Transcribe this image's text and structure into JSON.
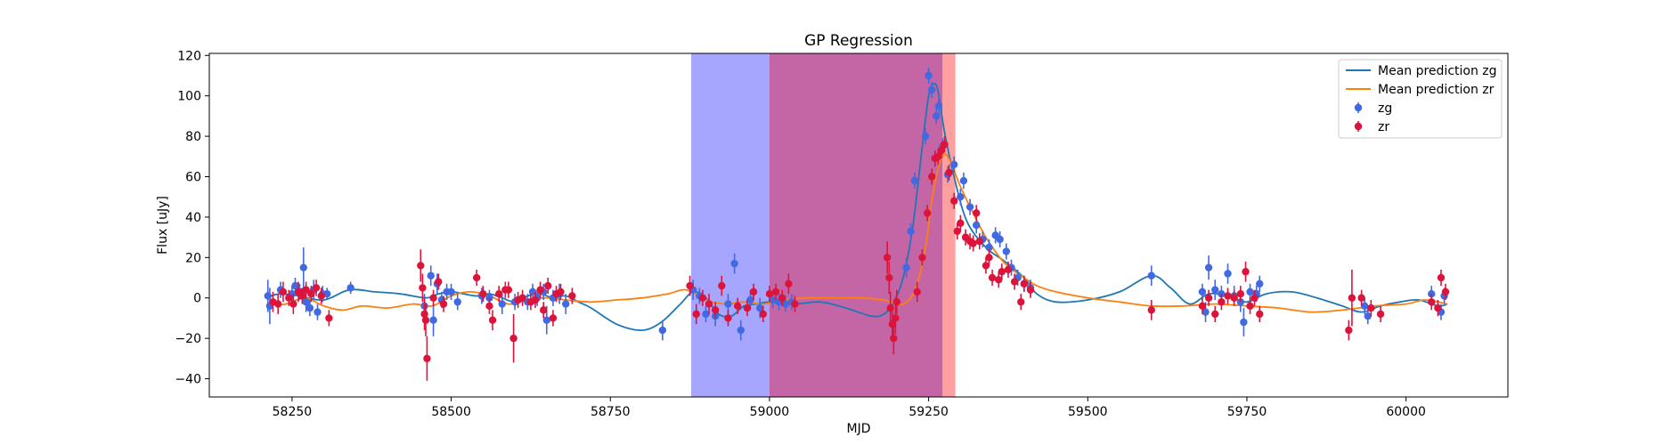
{
  "chart_data": {
    "type": "scatter",
    "title": "GP Regression",
    "xlabel": "MJD",
    "ylabel": "Flux [uJy]",
    "xlim": [
      58120,
      60160
    ],
    "ylim": [
      -49,
      121
    ],
    "xticks": [
      58250,
      58500,
      58750,
      59000,
      59250,
      59500,
      59750,
      60000
    ],
    "yticks": [
      -40,
      -20,
      0,
      20,
      40,
      60,
      80,
      100,
      120
    ],
    "grid": false,
    "legend_position": "top-right",
    "shaded_regions": [
      {
        "x0": 58877,
        "x1": 59000,
        "color": "#a6a6ff"
      },
      {
        "x0": 59000,
        "x1": 59272,
        "color": "#c466a6"
      },
      {
        "x0": 59272,
        "x1": 59292,
        "color": "#ffa0a0"
      }
    ],
    "lines": [
      {
        "name": "Mean prediction zg",
        "color": "#1f77b4",
        "x": [
          58210,
          58230,
          58260,
          58300,
          58340,
          58380,
          58420,
          58460,
          58480,
          58500,
          58520,
          58540,
          58560,
          58580,
          58600,
          58620,
          58640,
          58660,
          58680,
          58700,
          58720,
          58760,
          58800,
          58830,
          58860,
          58880,
          58900,
          58920,
          58940,
          58960,
          58980,
          59000,
          59040,
          59080,
          59120,
          59160,
          59180,
          59195,
          59210,
          59225,
          59240,
          59250,
          59258,
          59265,
          59275,
          59290,
          59310,
          59340,
          59370,
          59400,
          59420,
          59450,
          59500,
          59550,
          59600,
          59630,
          59660,
          59690,
          59720,
          59750,
          59780,
          59820,
          59860,
          59900,
          59930,
          59960,
          59990,
          60020,
          60050,
          60065
        ],
        "y": [
          0,
          2,
          1,
          -1,
          4,
          3,
          2,
          0,
          2,
          3,
          2,
          1,
          2,
          0,
          -2,
          1,
          2,
          0,
          1,
          -2,
          -5,
          -13,
          -16,
          -12,
          -3,
          3,
          0,
          -8,
          -9,
          -4,
          -3,
          -2,
          -3,
          -2,
          -5,
          -9,
          -8,
          -2,
          10,
          35,
          75,
          100,
          106,
          102,
          82,
          60,
          38,
          25,
          18,
          10,
          2,
          -2,
          -1,
          3,
          11,
          5,
          -3,
          2,
          1,
          -2,
          2,
          3,
          0,
          -4,
          -7,
          -4,
          -2,
          -1,
          -4,
          -3
        ]
      },
      {
        "name": "Mean prediction zr",
        "color": "#ff7f0e",
        "x": [
          58210,
          58240,
          58270,
          58300,
          58330,
          58360,
          58400,
          58440,
          58470,
          58500,
          58530,
          58560,
          58590,
          58620,
          58650,
          58680,
          58720,
          58760,
          58800,
          58840,
          58870,
          58900,
          58930,
          58960,
          58990,
          59020,
          59060,
          59100,
          59140,
          59180,
          59210,
          59230,
          59245,
          59255,
          59265,
          59275,
          59285,
          59300,
          59320,
          59340,
          59370,
          59400,
          59420,
          59450,
          59500,
          59550,
          59600,
          59650,
          59700,
          59750,
          59800,
          59850,
          59900,
          59950,
          60000,
          60030,
          60065
        ],
        "y": [
          -3,
          -3,
          0,
          -4,
          -6,
          -4,
          -5,
          -3,
          -4,
          1,
          3,
          1,
          -3,
          -1,
          0,
          -1,
          -2,
          -1,
          0,
          2,
          4,
          -1,
          -3,
          -2,
          -3,
          -1,
          0,
          0,
          0,
          -1,
          -3,
          5,
          25,
          48,
          64,
          71,
          67,
          55,
          42,
          30,
          17,
          10,
          6,
          3,
          0,
          -2,
          -4,
          -4,
          -3,
          -4,
          -5,
          -7,
          -6,
          -4,
          -3,
          -1,
          -3
        ]
      }
    ],
    "series": [
      {
        "name": "zg",
        "color": "#4169e1",
        "points": [
          [
            58212,
            1,
            8
          ],
          [
            58215,
            -4,
            9
          ],
          [
            58232,
            4,
            4
          ],
          [
            58250,
            2,
            4
          ],
          [
            58255,
            6,
            4
          ],
          [
            58262,
            3,
            4
          ],
          [
            58268,
            15,
            10
          ],
          [
            58272,
            -2,
            5
          ],
          [
            58278,
            -5,
            4
          ],
          [
            58284,
            4,
            5
          ],
          [
            58290,
            -7,
            4
          ],
          [
            58298,
            2,
            4
          ],
          [
            58305,
            2,
            3
          ],
          [
            58342,
            5,
            3
          ],
          [
            58458,
            -4,
            6
          ],
          [
            58468,
            11,
            5
          ],
          [
            58472,
            -11,
            8
          ],
          [
            58478,
            7,
            5
          ],
          [
            58485,
            -1,
            4
          ],
          [
            58493,
            3,
            4
          ],
          [
            58500,
            3,
            4
          ],
          [
            58510,
            -2,
            4
          ],
          [
            58548,
            1,
            4
          ],
          [
            58560,
            0,
            4
          ],
          [
            58580,
            -3,
            5
          ],
          [
            58600,
            -2,
            4
          ],
          [
            58620,
            -2,
            4
          ],
          [
            58628,
            3,
            4
          ],
          [
            58635,
            0,
            4
          ],
          [
            58645,
            3,
            4
          ],
          [
            58650,
            -11,
            7
          ],
          [
            58660,
            0,
            4
          ],
          [
            58670,
            2,
            5
          ],
          [
            58680,
            -3,
            5
          ],
          [
            58832,
            -16,
            5
          ],
          [
            58880,
            4,
            5
          ],
          [
            58890,
            1,
            4
          ],
          [
            58900,
            -8,
            4
          ],
          [
            58915,
            -9,
            5
          ],
          [
            58935,
            -3,
            5
          ],
          [
            58945,
            17,
            5
          ],
          [
            58955,
            -16,
            5
          ],
          [
            58970,
            -1,
            5
          ],
          [
            58985,
            -5,
            5
          ],
          [
            59005,
            -1,
            4
          ],
          [
            59015,
            -2,
            4
          ],
          [
            59025,
            -3,
            4
          ],
          [
            59035,
            -2,
            4
          ],
          [
            59215,
            15,
            5
          ],
          [
            59222,
            33,
            4
          ],
          [
            59228,
            58,
            4
          ],
          [
            59245,
            80,
            4
          ],
          [
            59250,
            110,
            4
          ],
          [
            59255,
            103,
            4
          ],
          [
            59262,
            90,
            4
          ],
          [
            59266,
            95,
            4
          ],
          [
            59272,
            75,
            4
          ],
          [
            59280,
            61,
            4
          ],
          [
            59290,
            66,
            4
          ],
          [
            59300,
            50,
            4
          ],
          [
            59305,
            58,
            4
          ],
          [
            59315,
            45,
            4
          ],
          [
            59325,
            36,
            4
          ],
          [
            59335,
            29,
            4
          ],
          [
            59345,
            25,
            4
          ],
          [
            59355,
            31,
            4
          ],
          [
            59362,
            29,
            4
          ],
          [
            59372,
            23,
            4
          ],
          [
            59380,
            15,
            4
          ],
          [
            59390,
            10,
            4
          ],
          [
            59400,
            7,
            4
          ],
          [
            59410,
            5,
            4
          ],
          [
            59600,
            11,
            5
          ],
          [
            59680,
            3,
            4
          ],
          [
            59685,
            -7,
            5
          ],
          [
            59690,
            15,
            6
          ],
          [
            59700,
            4,
            5
          ],
          [
            59710,
            2,
            4
          ],
          [
            59720,
            12,
            5
          ],
          [
            59730,
            1,
            5
          ],
          [
            59740,
            -2,
            5
          ],
          [
            59745,
            -12,
            7
          ],
          [
            59755,
            3,
            4
          ],
          [
            59765,
            2,
            4
          ],
          [
            59770,
            7,
            4
          ],
          [
            59935,
            -4,
            4
          ],
          [
            59940,
            -9,
            4
          ],
          [
            60040,
            2,
            4
          ],
          [
            60055,
            -7,
            4
          ],
          [
            60060,
            1,
            4
          ]
        ]
      },
      {
        "name": "zr",
        "color": "#dc143c",
        "points": [
          [
            58220,
            -2,
            5
          ],
          [
            58228,
            -3,
            5
          ],
          [
            58236,
            3,
            5
          ],
          [
            58245,
            0,
            4
          ],
          [
            58252,
            -3,
            5
          ],
          [
            58260,
            3,
            5
          ],
          [
            58266,
            1,
            4
          ],
          [
            58272,
            4,
            4
          ],
          [
            58280,
            2,
            4
          ],
          [
            58288,
            5,
            4
          ],
          [
            58296,
            1,
            4
          ],
          [
            58308,
            -10,
            4
          ],
          [
            58452,
            16,
            8
          ],
          [
            58455,
            5,
            7
          ],
          [
            58458,
            -8,
            8
          ],
          [
            58460,
            -11,
            8
          ],
          [
            58462,
            -30,
            11
          ],
          [
            58472,
            0,
            4
          ],
          [
            58480,
            8,
            4
          ],
          [
            58488,
            -3,
            4
          ],
          [
            58540,
            10,
            4
          ],
          [
            58550,
            2,
            4
          ],
          [
            58560,
            -4,
            4
          ],
          [
            58565,
            -11,
            5
          ],
          [
            58575,
            2,
            4
          ],
          [
            58585,
            4,
            4
          ],
          [
            58590,
            4,
            4
          ],
          [
            58598,
            -20,
            12
          ],
          [
            58605,
            -1,
            4
          ],
          [
            58612,
            0,
            4
          ],
          [
            58625,
            -2,
            4
          ],
          [
            58632,
            -1,
            4
          ],
          [
            58640,
            4,
            4
          ],
          [
            58645,
            -6,
            4
          ],
          [
            58652,
            6,
            4
          ],
          [
            58660,
            -10,
            4
          ],
          [
            58665,
            2,
            4
          ],
          [
            58672,
            3,
            4
          ],
          [
            58690,
            1,
            4
          ],
          [
            58875,
            6,
            5
          ],
          [
            58885,
            -8,
            5
          ],
          [
            58895,
            0,
            4
          ],
          [
            58905,
            -3,
            5
          ],
          [
            58915,
            -6,
            4
          ],
          [
            58925,
            6,
            5
          ],
          [
            58935,
            -10,
            4
          ],
          [
            58950,
            -4,
            4
          ],
          [
            58965,
            -5,
            4
          ],
          [
            58975,
            3,
            4
          ],
          [
            58990,
            -8,
            4
          ],
          [
            59000,
            2,
            4
          ],
          [
            59010,
            3,
            4
          ],
          [
            59020,
            0,
            4
          ],
          [
            59030,
            7,
            5
          ],
          [
            59040,
            -3,
            4
          ],
          [
            59185,
            20,
            8
          ],
          [
            59188,
            10,
            8
          ],
          [
            59190,
            -5,
            8
          ],
          [
            59193,
            -13,
            8
          ],
          [
            59195,
            -20,
            8
          ],
          [
            59198,
            -10,
            8
          ],
          [
            59200,
            -2,
            6
          ],
          [
            59232,
            3,
            5
          ],
          [
            59240,
            20,
            4
          ],
          [
            59248,
            42,
            4
          ],
          [
            59255,
            60,
            4
          ],
          [
            59260,
            69,
            4
          ],
          [
            59265,
            70,
            4
          ],
          [
            59270,
            73,
            4
          ],
          [
            59275,
            76,
            4
          ],
          [
            59282,
            62,
            4
          ],
          [
            59290,
            48,
            4
          ],
          [
            59295,
            33,
            4
          ],
          [
            59300,
            37,
            4
          ],
          [
            59308,
            30,
            4
          ],
          [
            59315,
            28,
            4
          ],
          [
            59320,
            27,
            4
          ],
          [
            59325,
            42,
            4
          ],
          [
            59330,
            28,
            4
          ],
          [
            59340,
            16,
            4
          ],
          [
            59345,
            20,
            4
          ],
          [
            59350,
            10,
            4
          ],
          [
            59360,
            9,
            4
          ],
          [
            59365,
            13,
            4
          ],
          [
            59375,
            14,
            4
          ],
          [
            59385,
            8,
            4
          ],
          [
            59395,
            -2,
            4
          ],
          [
            59400,
            7,
            4
          ],
          [
            59410,
            4,
            4
          ],
          [
            59600,
            -6,
            5
          ],
          [
            59680,
            -4,
            4
          ],
          [
            59690,
            0,
            4
          ],
          [
            59700,
            -8,
            4
          ],
          [
            59710,
            -2,
            4
          ],
          [
            59720,
            1,
            4
          ],
          [
            59730,
            0,
            4
          ],
          [
            59740,
            2,
            4
          ],
          [
            59748,
            13,
            5
          ],
          [
            59755,
            -4,
            4
          ],
          [
            59762,
            0,
            4
          ],
          [
            59770,
            -8,
            4
          ],
          [
            59910,
            -16,
            5
          ],
          [
            59915,
            0,
            14
          ],
          [
            59930,
            0,
            4
          ],
          [
            59945,
            -5,
            4
          ],
          [
            59960,
            -8,
            4
          ],
          [
            60040,
            -2,
            4
          ],
          [
            60050,
            -5,
            4
          ],
          [
            60055,
            10,
            4
          ],
          [
            60062,
            3,
            4
          ]
        ]
      }
    ]
  }
}
